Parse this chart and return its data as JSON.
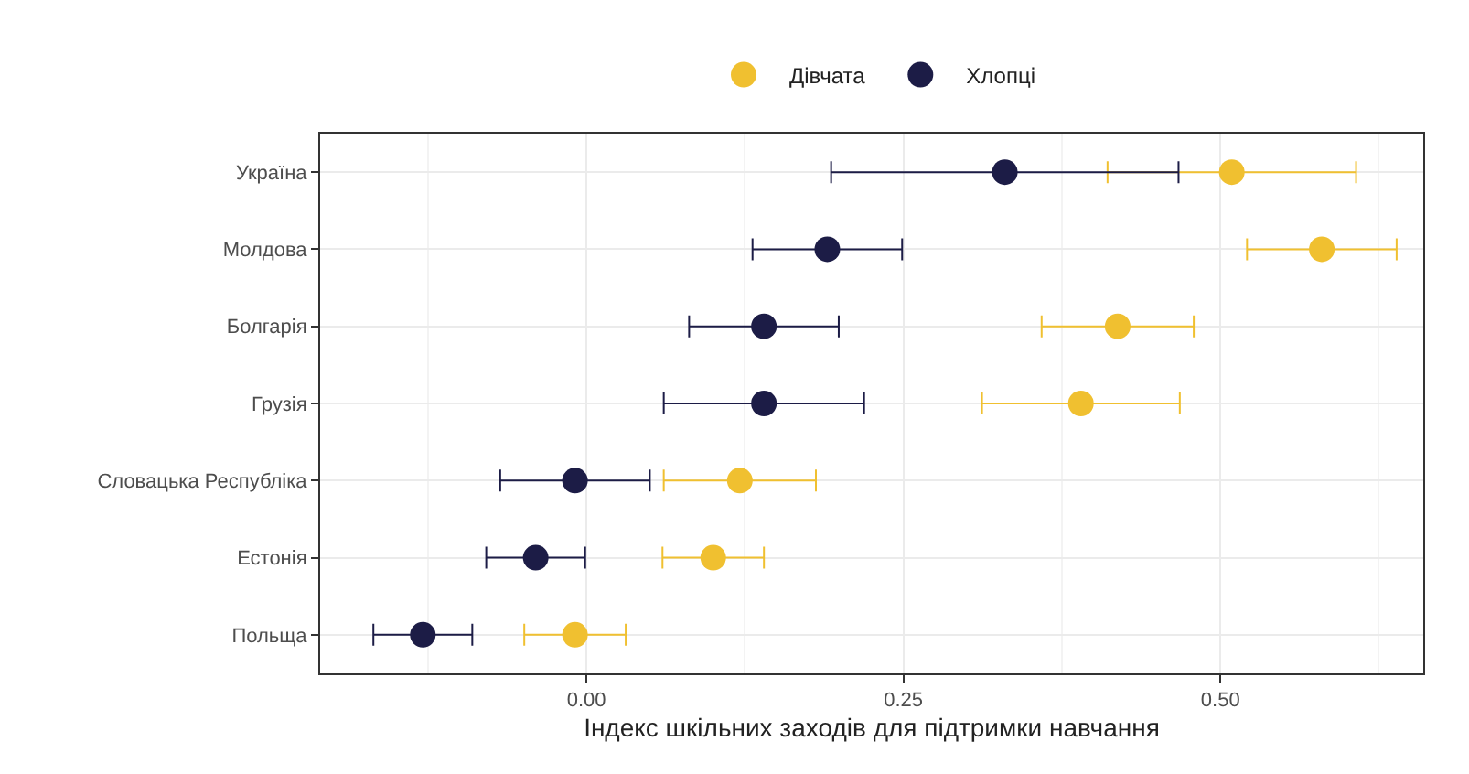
{
  "chart_data": {
    "type": "scatter",
    "orientation": "horizontal",
    "xlabel": "Індекс шкільних заходів для підтримки навчання",
    "categories": [
      "Україна",
      "Молдова",
      "Болгарія",
      "Грузія",
      "Словацька Республіка",
      "Естонія",
      "Польща"
    ],
    "series": [
      {
        "name": "Дівчата",
        "color": "#f0c030",
        "values": [
          0.509,
          0.58,
          0.419,
          0.39,
          0.121,
          0.1,
          -0.009
        ],
        "errors": [
          0.098,
          0.059,
          0.06,
          0.078,
          0.06,
          0.04,
          0.04
        ]
      },
      {
        "name": "Хлопці",
        "color": "#1c1c46",
        "values": [
          0.33,
          0.19,
          0.14,
          0.14,
          -0.009,
          -0.04,
          -0.129
        ],
        "errors": [
          0.137,
          0.059,
          0.059,
          0.079,
          0.059,
          0.039,
          0.039
        ]
      }
    ],
    "xlim": [
      -0.21,
      0.66
    ],
    "xticks": [
      {
        "value": 0,
        "label": "0.00"
      },
      {
        "value": 0.25,
        "label": "0.25"
      },
      {
        "value": 0.5,
        "label": "0.50"
      }
    ],
    "grid": true,
    "legend": "top",
    "marker": "circle"
  }
}
